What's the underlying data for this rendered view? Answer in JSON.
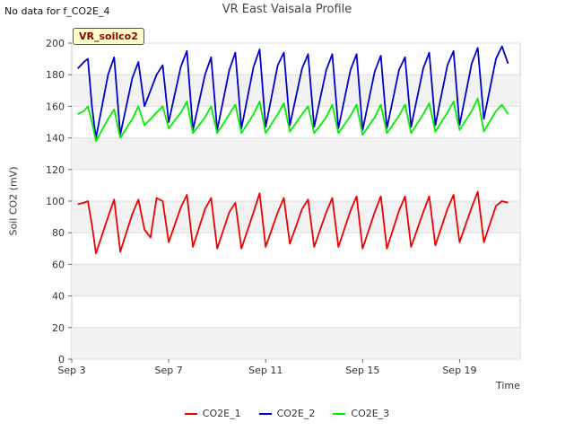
{
  "header": {
    "nodata_text": "No data for f_CO2E_4",
    "title": "VR East Vaisala Profile",
    "badge": "VR_soilco2"
  },
  "chart_data": {
    "type": "line",
    "title": "VR East Vaisala Profile",
    "xlabel": "Time",
    "ylabel": "Soil CO2 (mV)",
    "ylim": [
      0,
      200
    ],
    "yticks": [
      0,
      20,
      40,
      60,
      80,
      100,
      120,
      140,
      160,
      180,
      200
    ],
    "xlim": [
      "2023-09-03",
      "2023-09-21T12:00"
    ],
    "xticks": [
      {
        "date": "2023-09-03",
        "label": "Sep 3"
      },
      {
        "date": "2023-09-07",
        "label": "Sep 7"
      },
      {
        "date": "2023-09-11",
        "label": "Sep 11"
      },
      {
        "date": "2023-09-15",
        "label": "Sep 15"
      },
      {
        "date": "2023-09-19",
        "label": "Sep 19"
      }
    ],
    "grid": true,
    "legend_position": "bottom",
    "series": [
      {
        "name": "CO2E_1",
        "color": "#ee0000",
        "x": [
          "2023-09-03T06:00",
          "2023-09-03T12:00",
          "2023-09-03T16:00",
          "2023-09-03T20:00",
          "2023-09-04",
          "2023-09-04T12:00",
          "2023-09-04T18:00",
          "2023-09-05",
          "2023-09-05T12:00",
          "2023-09-05T18:00",
          "2023-09-06",
          "2023-09-06T06:00",
          "2023-09-06T12:00",
          "2023-09-06T18:00",
          "2023-09-07",
          "2023-09-07T12:00",
          "2023-09-07T18:00",
          "2023-09-08",
          "2023-09-08T12:00",
          "2023-09-08T18:00",
          "2023-09-09",
          "2023-09-09T12:00",
          "2023-09-09T18:00",
          "2023-09-10",
          "2023-09-10T12:00",
          "2023-09-10T18:00",
          "2023-09-11",
          "2023-09-11T12:00",
          "2023-09-11T18:00",
          "2023-09-12",
          "2023-09-12T12:00",
          "2023-09-12T18:00",
          "2023-09-13",
          "2023-09-13T12:00",
          "2023-09-13T18:00",
          "2023-09-14",
          "2023-09-14T12:00",
          "2023-09-14T18:00",
          "2023-09-15",
          "2023-09-15T12:00",
          "2023-09-15T18:00",
          "2023-09-16",
          "2023-09-16T12:00",
          "2023-09-16T18:00",
          "2023-09-17",
          "2023-09-17T12:00",
          "2023-09-17T18:00",
          "2023-09-18",
          "2023-09-18T12:00",
          "2023-09-18T18:00",
          "2023-09-19",
          "2023-09-19T12:00",
          "2023-09-19T18:00",
          "2023-09-20",
          "2023-09-20T12:00",
          "2023-09-20T18:00",
          "2023-09-21"
        ],
        "y": [
          98,
          99,
          100,
          85,
          67,
          90,
          101,
          68,
          92,
          101,
          82,
          77,
          102,
          100,
          74,
          96,
          104,
          71,
          95,
          102,
          70,
          93,
          99,
          70,
          93,
          105,
          71,
          93,
          102,
          73,
          95,
          101,
          71,
          93,
          102,
          71,
          94,
          103,
          70,
          93,
          103,
          70,
          94,
          103,
          71,
          93,
          103,
          72,
          95,
          104,
          74,
          96,
          106,
          74,
          97,
          100,
          99
        ]
      },
      {
        "name": "CO2E_2",
        "color": "#0000cc",
        "x": [
          "2023-09-03T06:00",
          "2023-09-03T12:00",
          "2023-09-03T16:00",
          "2023-09-03T20:00",
          "2023-09-04",
          "2023-09-04T12:00",
          "2023-09-04T18:00",
          "2023-09-05",
          "2023-09-05T12:00",
          "2023-09-05T18:00",
          "2023-09-06",
          "2023-09-06T12:00",
          "2023-09-06T18:00",
          "2023-09-07",
          "2023-09-07T12:00",
          "2023-09-07T18:00",
          "2023-09-08",
          "2023-09-08T12:00",
          "2023-09-08T18:00",
          "2023-09-09",
          "2023-09-09T12:00",
          "2023-09-09T18:00",
          "2023-09-10",
          "2023-09-10T12:00",
          "2023-09-10T18:00",
          "2023-09-11",
          "2023-09-11T12:00",
          "2023-09-11T18:00",
          "2023-09-12",
          "2023-09-12T12:00",
          "2023-09-12T18:00",
          "2023-09-13",
          "2023-09-13T12:00",
          "2023-09-13T18:00",
          "2023-09-14",
          "2023-09-14T12:00",
          "2023-09-14T18:00",
          "2023-09-15",
          "2023-09-15T12:00",
          "2023-09-15T18:00",
          "2023-09-16",
          "2023-09-16T12:00",
          "2023-09-16T18:00",
          "2023-09-17",
          "2023-09-17T12:00",
          "2023-09-17T18:00",
          "2023-09-18",
          "2023-09-18T12:00",
          "2023-09-18T18:00",
          "2023-09-19",
          "2023-09-19T12:00",
          "2023-09-19T18:00",
          "2023-09-20",
          "2023-09-20T12:00",
          "2023-09-20T18:00",
          "2023-09-21"
        ],
        "y": [
          184,
          188,
          190,
          160,
          140,
          180,
          191,
          142,
          178,
          188,
          160,
          180,
          186,
          150,
          185,
          195,
          145,
          180,
          191,
          145,
          183,
          194,
          146,
          185,
          196,
          147,
          186,
          194,
          148,
          184,
          193,
          147,
          183,
          193,
          146,
          183,
          193,
          145,
          182,
          192,
          146,
          183,
          191,
          147,
          184,
          194,
          148,
          186,
          195,
          148,
          187,
          197,
          152,
          190,
          198,
          187
        ]
      },
      {
        "name": "CO2E_3",
        "color": "#00ee00",
        "x": [
          "2023-09-03T06:00",
          "2023-09-03T12:00",
          "2023-09-03T16:00",
          "2023-09-03T20:00",
          "2023-09-04",
          "2023-09-04T12:00",
          "2023-09-04T18:00",
          "2023-09-05",
          "2023-09-05T12:00",
          "2023-09-05T18:00",
          "2023-09-06",
          "2023-09-06T12:00",
          "2023-09-06T18:00",
          "2023-09-07",
          "2023-09-07T12:00",
          "2023-09-07T18:00",
          "2023-09-08",
          "2023-09-08T12:00",
          "2023-09-08T18:00",
          "2023-09-09",
          "2023-09-09T12:00",
          "2023-09-09T18:00",
          "2023-09-10",
          "2023-09-10T12:00",
          "2023-09-10T18:00",
          "2023-09-11",
          "2023-09-11T12:00",
          "2023-09-11T18:00",
          "2023-09-12",
          "2023-09-12T12:00",
          "2023-09-12T18:00",
          "2023-09-13",
          "2023-09-13T12:00",
          "2023-09-13T18:00",
          "2023-09-14",
          "2023-09-14T12:00",
          "2023-09-14T18:00",
          "2023-09-15",
          "2023-09-15T12:00",
          "2023-09-15T18:00",
          "2023-09-16",
          "2023-09-16T12:00",
          "2023-09-16T18:00",
          "2023-09-17",
          "2023-09-17T12:00",
          "2023-09-17T18:00",
          "2023-09-18",
          "2023-09-18T12:00",
          "2023-09-18T18:00",
          "2023-09-19",
          "2023-09-19T12:00",
          "2023-09-19T18:00",
          "2023-09-20",
          "2023-09-20T12:00",
          "2023-09-20T18:00",
          "2023-09-21"
        ],
        "y": [
          155,
          157,
          160,
          150,
          138,
          152,
          158,
          140,
          152,
          160,
          148,
          156,
          160,
          146,
          156,
          163,
          143,
          153,
          160,
          143,
          155,
          161,
          143,
          155,
          163,
          143,
          155,
          162,
          144,
          155,
          160,
          143,
          153,
          161,
          143,
          154,
          161,
          142,
          153,
          161,
          143,
          154,
          161,
          143,
          155,
          162,
          144,
          156,
          163,
          145,
          157,
          165,
          144,
          157,
          161,
          155
        ]
      }
    ]
  }
}
